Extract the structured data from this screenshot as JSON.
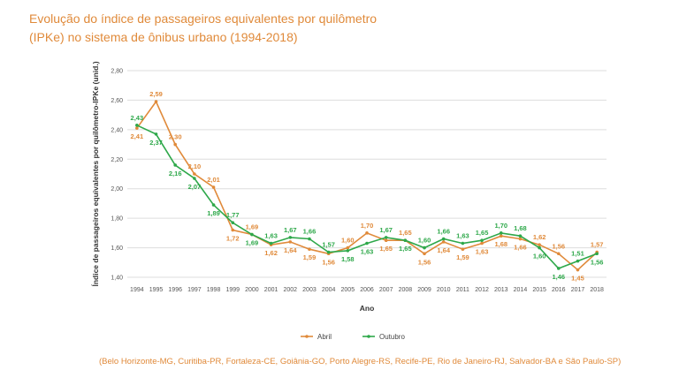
{
  "title": "Evolução do índice de passageiros equivalentes por quilômetro (IPKe) no sistema de ônibus urbano (1994-2018)",
  "source": "(Belo Horizonte-MG, Curitiba-PR, Fortaleza-CE, Goiânia-GO, Porto Alegre-RS, Recife-PE, Rio de Janeiro-RJ, Salvador-BA e São Paulo-SP)",
  "colors": {
    "title": "#e08a3a",
    "abril": "#e08a3a",
    "outubro": "#2ea84a",
    "grid": "#dddddd"
  },
  "chart_data": {
    "type": "line",
    "title": "Evolução do índice de passageiros equivalentes por quilômetro (IPKe) no sistema de ônibus urbano (1994-2018)",
    "xlabel": "Ano",
    "ylabel": "Índice de passageiros equivalentes por quilômetro-IPKe (unid.)",
    "ylim": [
      1.4,
      2.8
    ],
    "yticks": [
      "1,40",
      "1,60",
      "1,80",
      "2,00",
      "2,20",
      "2,40",
      "2,60",
      "2,80"
    ],
    "grid": true,
    "legend": "bottom",
    "categories": [
      "1994",
      "1995",
      "1996",
      "1997",
      "1998",
      "1999",
      "2000",
      "2001",
      "2002",
      "2003",
      "2004",
      "2005",
      "2006",
      "2007",
      "2008",
      "2009",
      "2010",
      "2011",
      "2012",
      "2013",
      "2014",
      "2015",
      "2016",
      "2017",
      "2018"
    ],
    "series": [
      {
        "name": "Abril",
        "values": [
          2.41,
          2.59,
          2.3,
          2.1,
          2.01,
          1.72,
          1.69,
          1.62,
          1.64,
          1.59,
          1.56,
          1.6,
          1.7,
          1.65,
          1.65,
          1.56,
          1.64,
          1.59,
          1.63,
          1.68,
          1.66,
          1.62,
          1.56,
          1.45,
          1.57
        ],
        "labels": [
          "2,41",
          "2,59",
          "2,30",
          "2,10",
          "2,01",
          "1,72",
          "1,69",
          "1,62",
          "1,64",
          "1,59",
          "1,56",
          "1,60",
          "1,70",
          "1,65",
          "1,65",
          "1,56",
          "1,64",
          "1,59",
          "1,63",
          "1,68",
          "1,66",
          "1,62",
          "1,56",
          "1,45",
          "1,57"
        ]
      },
      {
        "name": "Outubro",
        "values": [
          2.43,
          2.37,
          2.16,
          2.07,
          1.89,
          1.77,
          1.69,
          1.63,
          1.67,
          1.66,
          1.57,
          1.58,
          1.63,
          1.67,
          1.65,
          1.6,
          1.66,
          1.63,
          1.65,
          1.7,
          1.68,
          1.6,
          1.46,
          1.51,
          1.56
        ],
        "labels": [
          "2,43",
          "2,37",
          "2,16",
          "2,07",
          "1,89",
          "1,77",
          "1,69",
          "1,63",
          "1,67",
          "1,66",
          "1,57",
          "1,58",
          "1,63",
          "1,67",
          "1,65",
          "1,60",
          "1,66",
          "1,63",
          "1,65",
          "1,70",
          "1,68",
          "1,60",
          "1,46",
          "1,51",
          "1,56"
        ]
      }
    ]
  }
}
